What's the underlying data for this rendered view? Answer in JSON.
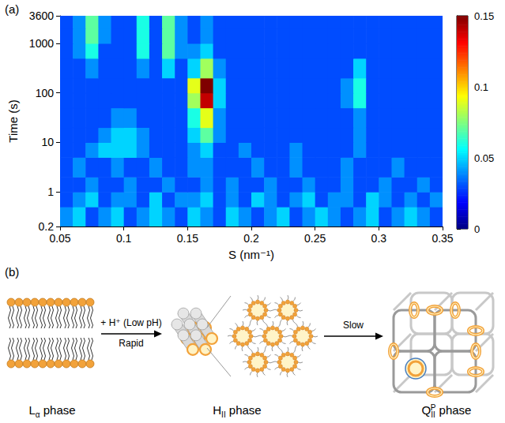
{
  "chart_data": {
    "type": "heatmap",
    "annotations": [
      "(a)"
    ],
    "x_label": "S (nm⁻¹)",
    "y_label": "Time (s)",
    "xlim": [
      0.05,
      0.35
    ],
    "xticks": [
      0.05,
      0.1,
      0.15,
      0.2,
      0.25,
      0.3,
      0.35
    ],
    "ylim": [
      0.2,
      3600
    ],
    "yticks": [
      0.2,
      1,
      10,
      100,
      1000,
      3600
    ],
    "log": "y",
    "x_edges": [
      0.05,
      0.06,
      0.07,
      0.08,
      0.09,
      0.1,
      0.11,
      0.12,
      0.13,
      0.14,
      0.15,
      0.16,
      0.17,
      0.18,
      0.19,
      0.2,
      0.21,
      0.22,
      0.23,
      0.24,
      0.25,
      0.26,
      0.27,
      0.28,
      0.29,
      0.3,
      0.31,
      0.32,
      0.33,
      0.34,
      0.35
    ],
    "y_edges": [
      0.2,
      0.5,
      1,
      2,
      5,
      10,
      20,
      50,
      100,
      200,
      500,
      1000,
      2000,
      3600
    ],
    "cells": [
      [
        0.04,
        0.05,
        0.03,
        0.04,
        0.05,
        0.03,
        0.04,
        0.05,
        0.04,
        0.03,
        0.05,
        0.04,
        0.03,
        0.05,
        0.04,
        0.03,
        0.04,
        0.05,
        0.03,
        0.04,
        0.05,
        0.04,
        0.03,
        0.04,
        0.05,
        0.03,
        0.04,
        0.05,
        0.04,
        0.03
      ],
      [
        0.03,
        0.04,
        0.05,
        0.03,
        0.04,
        0.04,
        0.03,
        0.05,
        0.03,
        0.04,
        0.04,
        0.05,
        0.03,
        0.04,
        0.03,
        0.05,
        0.04,
        0.03,
        0.04,
        0.05,
        0.03,
        0.04,
        0.04,
        0.03,
        0.05,
        0.04,
        0.03,
        0.04,
        0.03,
        0.04
      ],
      [
        0.03,
        0.03,
        0.04,
        0.03,
        0.03,
        0.04,
        0.03,
        0.03,
        0.04,
        0.03,
        0.03,
        0.04,
        0.03,
        0.04,
        0.03,
        0.03,
        0.04,
        0.03,
        0.03,
        0.04,
        0.03,
        0.03,
        0.04,
        0.03,
        0.03,
        0.04,
        0.03,
        0.03,
        0.04,
        0.03
      ],
      [
        0.03,
        0.04,
        0.03,
        0.03,
        0.04,
        0.03,
        0.03,
        0.04,
        0.03,
        0.03,
        0.04,
        0.04,
        0.03,
        0.03,
        0.03,
        0.04,
        0.03,
        0.03,
        0.04,
        0.03,
        0.03,
        0.03,
        0.04,
        0.03,
        0.03,
        0.03,
        0.04,
        0.03,
        0.03,
        0.03
      ],
      [
        0.03,
        0.03,
        0.04,
        0.05,
        0.05,
        0.05,
        0.04,
        0.03,
        0.03,
        0.03,
        0.04,
        0.05,
        0.03,
        0.03,
        0.04,
        0.03,
        0.03,
        0.03,
        0.04,
        0.03,
        0.03,
        0.03,
        0.03,
        0.04,
        0.03,
        0.03,
        0.03,
        0.03,
        0.03,
        0.03
      ],
      [
        0.03,
        0.03,
        0.03,
        0.04,
        0.05,
        0.05,
        0.04,
        0.03,
        0.03,
        0.03,
        0.05,
        0.07,
        0.04,
        0.03,
        0.03,
        0.03,
        0.03,
        0.03,
        0.03,
        0.03,
        0.03,
        0.03,
        0.03,
        0.04,
        0.03,
        0.03,
        0.03,
        0.03,
        0.03,
        0.03
      ],
      [
        0.03,
        0.03,
        0.03,
        0.03,
        0.04,
        0.04,
        0.03,
        0.03,
        0.03,
        0.03,
        0.06,
        0.09,
        0.04,
        0.03,
        0.03,
        0.03,
        0.03,
        0.03,
        0.03,
        0.03,
        0.03,
        0.03,
        0.03,
        0.04,
        0.03,
        0.03,
        0.03,
        0.03,
        0.03,
        0.03
      ],
      [
        0.03,
        0.03,
        0.03,
        0.03,
        0.03,
        0.03,
        0.03,
        0.03,
        0.03,
        0.03,
        0.08,
        0.14,
        0.05,
        0.03,
        0.03,
        0.03,
        0.03,
        0.03,
        0.03,
        0.03,
        0.03,
        0.03,
        0.04,
        0.06,
        0.03,
        0.03,
        0.03,
        0.03,
        0.03,
        0.03
      ],
      [
        0.03,
        0.03,
        0.03,
        0.03,
        0.03,
        0.03,
        0.03,
        0.03,
        0.03,
        0.03,
        0.09,
        0.15,
        0.05,
        0.03,
        0.03,
        0.03,
        0.03,
        0.03,
        0.03,
        0.03,
        0.03,
        0.03,
        0.04,
        0.06,
        0.03,
        0.03,
        0.03,
        0.03,
        0.03,
        0.03
      ],
      [
        0.03,
        0.03,
        0.04,
        0.03,
        0.03,
        0.03,
        0.04,
        0.03,
        0.05,
        0.03,
        0.05,
        0.08,
        0.04,
        0.03,
        0.03,
        0.03,
        0.03,
        0.03,
        0.03,
        0.03,
        0.03,
        0.03,
        0.03,
        0.05,
        0.03,
        0.03,
        0.03,
        0.03,
        0.03,
        0.03
      ],
      [
        0.03,
        0.04,
        0.06,
        0.03,
        0.03,
        0.03,
        0.06,
        0.03,
        0.07,
        0.04,
        0.04,
        0.05,
        0.03,
        0.03,
        0.03,
        0.03,
        0.03,
        0.03,
        0.03,
        0.03,
        0.03,
        0.03,
        0.03,
        0.03,
        0.03,
        0.03,
        0.03,
        0.03,
        0.03,
        0.03
      ],
      [
        0.03,
        0.04,
        0.07,
        0.04,
        0.03,
        0.03,
        0.06,
        0.03,
        0.07,
        0.04,
        0.03,
        0.04,
        0.03,
        0.03,
        0.03,
        0.03,
        0.03,
        0.03,
        0.03,
        0.03,
        0.03,
        0.03,
        0.03,
        0.03,
        0.03,
        0.03,
        0.03,
        0.03,
        0.03,
        0.03
      ],
      [
        0.03,
        0.04,
        0.07,
        0.04,
        0.03,
        0.03,
        0.06,
        0.03,
        0.07,
        0.04,
        0.03,
        0.04,
        0.03,
        0.03,
        0.03,
        0.03,
        0.03,
        0.03,
        0.03,
        0.03,
        0.03,
        0.03,
        0.03,
        0.03,
        0.03,
        0.03,
        0.03,
        0.03,
        0.03,
        0.03
      ]
    ],
    "colorbar_range": [
      0,
      0.15
    ],
    "colorbar_ticks": [
      0,
      0.05,
      0.1,
      0.15
    ]
  },
  "diagram": {
    "panel": "(b)",
    "phases": [
      {
        "base": "L",
        "sub": "α",
        "rest": " phase"
      },
      {
        "base": "H",
        "sub": "II",
        "rest": " phase"
      },
      {
        "base": "Q",
        "sub": "II",
        "sup": "P",
        "rest": " phase"
      }
    ],
    "arrows": [
      {
        "above": "+ H⁺ (Low pH)",
        "below": "Rapid"
      },
      {
        "above": "Slow"
      }
    ]
  }
}
